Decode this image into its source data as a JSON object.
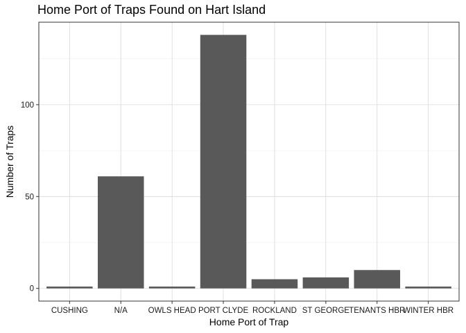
{
  "chart_data": {
    "type": "bar",
    "title": "Home Port of Traps Found on Hart Island",
    "xlabel": "Home Port of Trap",
    "ylabel": "Number of Traps",
    "categories": [
      "CUSHING",
      "N/A",
      "OWLS HEAD",
      "PORT CLYDE",
      "ROCKLAND",
      "ST GEORGE",
      "TENANTS HBR",
      "WINTER HBR"
    ],
    "values": [
      1,
      61,
      1,
      138,
      5,
      6,
      10,
      1
    ],
    "yticks": [
      0,
      50,
      100
    ],
    "ylim": [
      -6.9,
      144.9
    ],
    "bar_color": "#595959",
    "grid": true,
    "legend": "none"
  }
}
